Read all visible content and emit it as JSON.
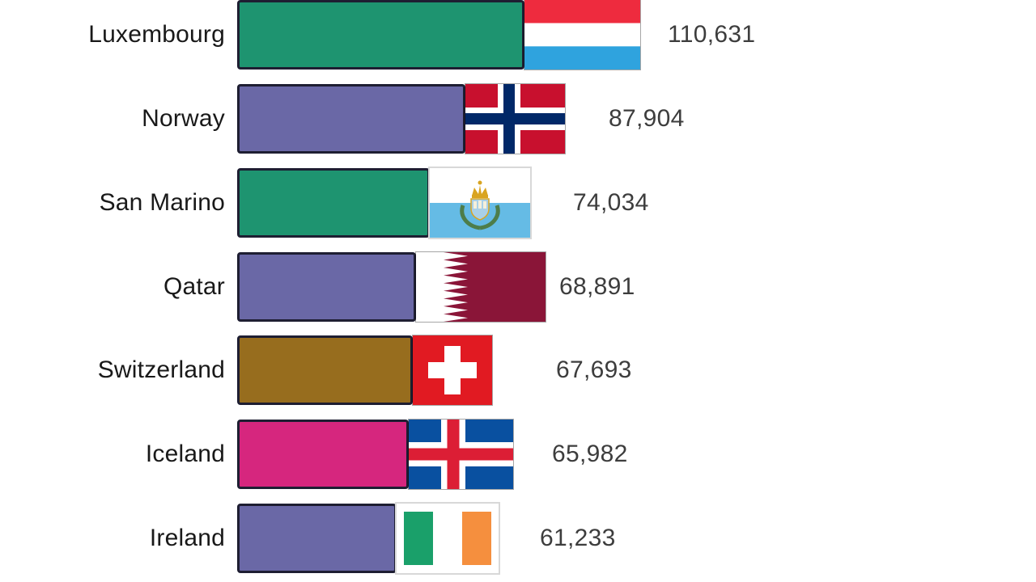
{
  "chart_data": {
    "type": "bar",
    "orientation": "horizontal",
    "categories": [
      "Luxembourg",
      "Norway",
      "San Marino",
      "Qatar",
      "Switzerland",
      "Iceland",
      "Ireland"
    ],
    "values": [
      110631,
      87904,
      74034,
      68891,
      67693,
      65982,
      61233
    ],
    "value_labels": [
      "110,631",
      "87,904",
      "74,034",
      "68,891",
      "67,693",
      "65,982",
      "61,233"
    ],
    "bar_colors": [
      "#1e9470",
      "#6a68a6",
      "#1e9470",
      "#6a68a6",
      "#976d1e",
      "#d6267e",
      "#6a68a6"
    ],
    "flags": [
      "luxembourg-flag",
      "norway-flag",
      "san-marino-flag",
      "qatar-flag",
      "switzerland-flag",
      "iceland-flag",
      "ireland-flag"
    ],
    "flag_widths": [
      143,
      123,
      124,
      160,
      98,
      129,
      126
    ],
    "axes_visible": false,
    "legend_visible": false,
    "background": "#ffffff"
  },
  "style": {
    "bar_border_color": "#1e1e32",
    "label_color": "#191919",
    "value_color": "#3d3d3d"
  },
  "flag_colors": {
    "luxembourg-flag": {
      "top": "#ee2b3e",
      "middle": "#ffffff",
      "bottom": "#2fa3de"
    },
    "norway-flag": {
      "field": "#c8102e",
      "fimbriation": "#ffffff",
      "cross": "#002868"
    },
    "san-marino-flag": {
      "top": "#ffffff",
      "bottom": "#65bbe5",
      "crown": "#d9a420",
      "wreath": "#4d7d4a",
      "shield": "#a9d0e8",
      "towers": "#f5f0dc"
    },
    "qatar-flag": {
      "serrated_band": "#ffffff",
      "field": "#8a1538"
    },
    "switzerland-flag": {
      "field": "#e11a22",
      "cross": "#ffffff"
    },
    "iceland-flag": {
      "field": "#0950a0",
      "fimbriation": "#ffffff",
      "cross": "#dc1e35"
    },
    "ireland-flag": {
      "green": "#1aa06a",
      "white": "#ffffff",
      "orange": "#f58f3e",
      "border": "#d9d9d9"
    }
  }
}
